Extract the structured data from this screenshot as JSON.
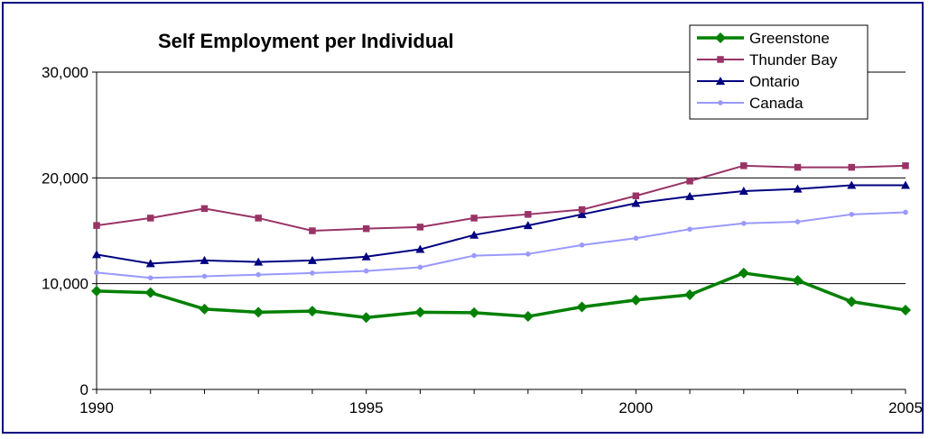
{
  "chart_data": {
    "type": "line",
    "title": "Self Employment per Individual",
    "xlabel": "",
    "ylabel": "",
    "x": [
      1990,
      1991,
      1992,
      1993,
      1994,
      1995,
      1996,
      1997,
      1998,
      1999,
      2000,
      2001,
      2002,
      2003,
      2004,
      2005
    ],
    "x_tick_labels": [
      "1990",
      "1995",
      "2000",
      "2005"
    ],
    "y_tick_labels": [
      "0",
      "10,000",
      "20,000",
      "30,000"
    ],
    "ylim": [
      0,
      30000
    ],
    "grid": "horizontal",
    "legend_position": "top-right",
    "series": [
      {
        "name": "Greenstone",
        "color": "#008000",
        "marker": "diamond",
        "values": [
          9300,
          9150,
          7600,
          7300,
          7400,
          6800,
          7300,
          7250,
          6900,
          7800,
          8450,
          8950,
          11000,
          10300,
          8300,
          7500
        ]
      },
      {
        "name": "Thunder Bay",
        "color": "#993366",
        "marker": "square",
        "values": [
          15500,
          16200,
          17100,
          16200,
          15000,
          15200,
          15350,
          16200,
          16550,
          17000,
          18300,
          19700,
          21150,
          21000,
          21000,
          21150
        ]
      },
      {
        "name": "Ontario",
        "color": "#000080",
        "marker": "triangle",
        "values": [
          12750,
          11900,
          12200,
          12050,
          12200,
          12550,
          13250,
          14600,
          15500,
          16550,
          17600,
          18250,
          18750,
          18950,
          19300,
          19300
        ]
      },
      {
        "name": "Canada",
        "color": "#9999ff",
        "marker": "circle",
        "values": [
          11050,
          10550,
          10700,
          10850,
          11000,
          11200,
          11550,
          12650,
          12800,
          13650,
          14300,
          15150,
          15700,
          15850,
          16550,
          16750
        ]
      }
    ]
  }
}
